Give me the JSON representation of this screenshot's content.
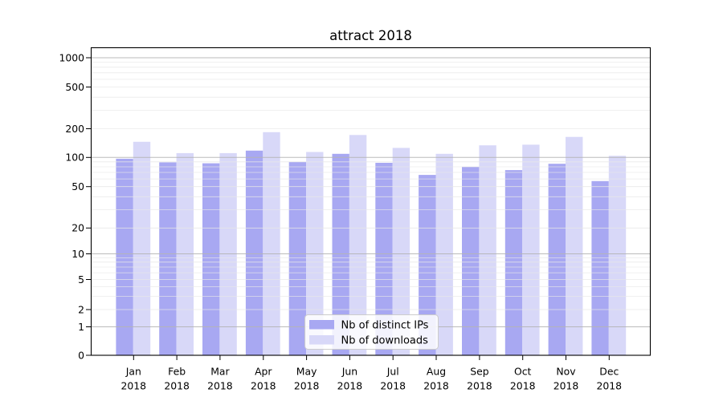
{
  "chart_data": {
    "type": "bar",
    "title": "attract 2018",
    "categories": [
      {
        "month": "Jan",
        "year": "2018"
      },
      {
        "month": "Feb",
        "year": "2018"
      },
      {
        "month": "Mar",
        "year": "2018"
      },
      {
        "month": "Apr",
        "year": "2018"
      },
      {
        "month": "May",
        "year": "2018"
      },
      {
        "month": "Jun",
        "year": "2018"
      },
      {
        "month": "Jul",
        "year": "2018"
      },
      {
        "month": "Aug",
        "year": "2018"
      },
      {
        "month": "Sep",
        "year": "2018"
      },
      {
        "month": "Oct",
        "year": "2018"
      },
      {
        "month": "Nov",
        "year": "2018"
      },
      {
        "month": "Dec",
        "year": "2018"
      }
    ],
    "series": [
      {
        "name": "Nb of distinct IPs",
        "color": "#a8a8f2",
        "values": [
          97,
          89,
          87,
          118,
          90,
          109,
          88,
          66,
          80,
          74,
          86,
          57
        ]
      },
      {
        "name": "Nb of downloads",
        "color": "#d8d8f8",
        "values": [
          146,
          111,
          111,
          184,
          114,
          172,
          126,
          109,
          134,
          136,
          164,
          104
        ]
      }
    ],
    "y_axis": {
      "scale": "symlog",
      "ticks": [
        0,
        1,
        2,
        5,
        10,
        20,
        50,
        100,
        200,
        500,
        1000
      ],
      "range": [
        0,
        1260
      ]
    },
    "x_axis": {
      "label": "",
      "tick_style": "month over year"
    },
    "grid": "on",
    "legend_position": "lower center",
    "colors": {
      "major_grid": "#b4b4b4",
      "minor_grid": "#e7e7e7",
      "axis": "#000000",
      "background": "#ffffff"
    }
  }
}
